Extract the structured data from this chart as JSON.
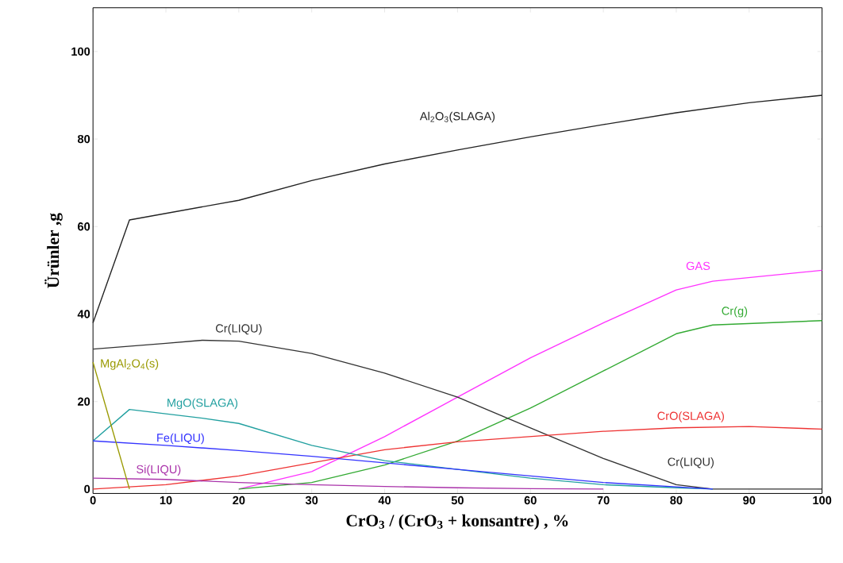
{
  "chart_data": {
    "type": "line",
    "xlabel": "CrO$_{3}$ / (CrO$_{3}$ + konsantre) , %",
    "ylabel": "Ürünler ,g",
    "xlim": [
      0,
      100
    ],
    "ylim": [
      -1,
      110
    ],
    "xticks": [
      0,
      10,
      20,
      30,
      40,
      50,
      60,
      70,
      80,
      90,
      100
    ],
    "yticks": [
      0,
      20,
      40,
      60,
      80,
      100
    ],
    "series": [
      {
        "name": "Al$_{2}$O$_{3}$(SLAGA)",
        "color": "#222222",
        "x": [
          0,
          5,
          20,
          30,
          40,
          50,
          60,
          70,
          80,
          90,
          100
        ],
        "values": [
          38,
          61.5,
          66,
          70.5,
          74.3,
          77.5,
          80.5,
          83.3,
          86,
          88.3,
          90
        ]
      },
      {
        "name": "GAS",
        "color": "#ff33ff",
        "x": [
          20,
          30,
          40,
          50,
          60,
          70,
          80,
          85,
          100
        ],
        "values": [
          0,
          4,
          12,
          21,
          30,
          38,
          45.5,
          47.5,
          50
        ]
      },
      {
        "name": "Cr(g)",
        "color": "#33aa33",
        "x": [
          20,
          30,
          40,
          50,
          60,
          70,
          80,
          85,
          100
        ],
        "values": [
          0,
          1.5,
          5.5,
          11,
          18.5,
          27,
          35.5,
          37.5,
          38.5
        ]
      },
      {
        "name": "Cr(LIQU)",
        "color": "#333333",
        "x": [
          0,
          10,
          15,
          20,
          30,
          40,
          50,
          60,
          70,
          80,
          85,
          100
        ],
        "values": [
          32,
          33.3,
          34,
          33.8,
          31,
          26.5,
          21,
          14,
          7,
          1,
          0,
          0
        ]
      },
      {
        "name": "CrO(SLAGA)",
        "color": "#ee3333",
        "x": [
          0,
          10,
          20,
          30,
          40,
          50,
          60,
          70,
          80,
          90,
          100
        ],
        "values": [
          0,
          1,
          3,
          6,
          9,
          10.8,
          12,
          13.2,
          14,
          14.3,
          13.7
        ]
      },
      {
        "name": "MgO(SLAGA)",
        "color": "#22a0a0",
        "x": [
          0,
          5,
          15,
          20,
          30,
          40,
          50,
          60,
          70,
          80,
          85
        ],
        "values": [
          11,
          18.2,
          16.2,
          15,
          10,
          6.5,
          4.5,
          2.5,
          1,
          0.3,
          0
        ]
      },
      {
        "name": "Fe(LIQU)",
        "color": "#3333ff",
        "x": [
          0,
          10,
          20,
          30,
          40,
          50,
          60,
          70,
          80,
          85
        ],
        "values": [
          11,
          10,
          8.8,
          7.5,
          6,
          4.5,
          3,
          1.5,
          0.5,
          0
        ]
      },
      {
        "name": "Si(LIQU)",
        "color": "#aa33aa",
        "x": [
          0,
          10,
          20,
          30,
          40,
          50,
          60,
          70
        ],
        "values": [
          2.5,
          2.2,
          1.5,
          1,
          0.6,
          0.3,
          0.1,
          0
        ]
      },
      {
        "name": "MgAl$_{2}$O$_{4}$(s)",
        "color": "#999900",
        "x": [
          0,
          5
        ],
        "values": [
          29,
          0
        ]
      }
    ],
    "annotations": [
      "Cr(LIQU)"
    ]
  }
}
